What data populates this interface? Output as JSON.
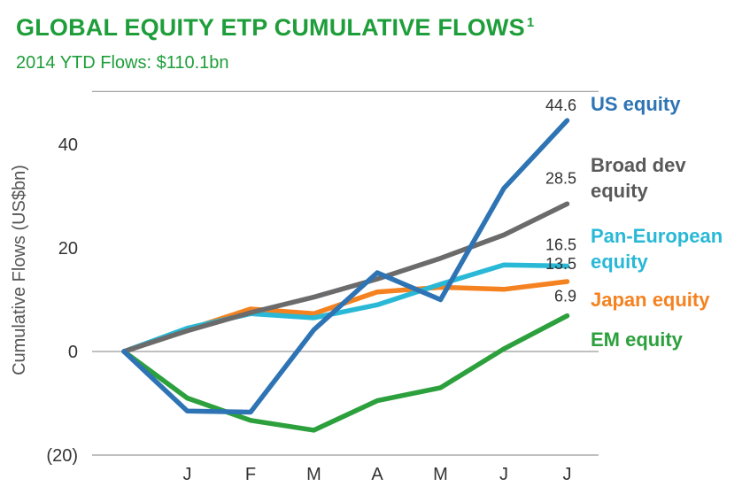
{
  "header": {
    "title": "GLOBAL EQUITY ETP CUMULATIVE FLOWS",
    "title_footnote": "1",
    "subtitle": "2014 YTD Flows: $110.1bn"
  },
  "chart_data": {
    "type": "line",
    "title": "GLOBAL EQUITY ETP CUMULATIVE FLOWS",
    "subtitle": "2014 YTD Flows: $110.1bn",
    "xlabel": "",
    "ylabel": "Cumulative Flows (US$bn)",
    "categories": [
      "",
      "J",
      "F",
      "M",
      "A",
      "M",
      "J",
      "J"
    ],
    "yticks": [
      40,
      20,
      0,
      -20
    ],
    "ytick_labels": [
      "40",
      "20",
      "0",
      "(20)"
    ],
    "ylim": [
      -20,
      50
    ],
    "grid": "horizontal lines at top, zero and bottom",
    "legend": "right, labels at line ends",
    "series": [
      {
        "name": "US equity",
        "color": "#2e74b5",
        "values": [
          0,
          -11.5,
          -11.7,
          4.2,
          15.2,
          10.0,
          31.5,
          44.6
        ],
        "end_label": "44.6"
      },
      {
        "name": "Broad dev equity",
        "color": "#6b6b6b",
        "values": [
          0,
          4.0,
          7.5,
          10.5,
          14.0,
          18.0,
          22.5,
          28.5
        ],
        "end_label": "28.5"
      },
      {
        "name": "Pan-European equity",
        "color": "#29b8d6",
        "values": [
          0,
          4.5,
          7.3,
          6.5,
          9.0,
          13.0,
          16.7,
          16.5
        ],
        "end_label": "16.5"
      },
      {
        "name": "Japan equity",
        "color": "#f58220",
        "values": [
          0,
          4.2,
          8.2,
          7.3,
          11.5,
          12.4,
          12.0,
          13.5
        ],
        "end_label": "13.5"
      },
      {
        "name": "EM equity",
        "color": "#2ca03c",
        "values": [
          0,
          -9.0,
          -13.3,
          -15.2,
          -9.5,
          -7.0,
          0.5,
          6.9
        ],
        "end_label": "6.9"
      }
    ],
    "legend_labels": [
      {
        "lines": [
          "US equity"
        ],
        "color": "#2e74b5"
      },
      {
        "lines": [
          "Broad dev",
          "equity"
        ],
        "color": "#595959"
      },
      {
        "lines": [
          "Pan-European",
          "equity"
        ],
        "color": "#29b8d6"
      },
      {
        "lines": [
          "Japan equity"
        ],
        "color": "#f58220"
      },
      {
        "lines": [
          "EM equity"
        ],
        "color": "#2ca03c"
      }
    ]
  }
}
